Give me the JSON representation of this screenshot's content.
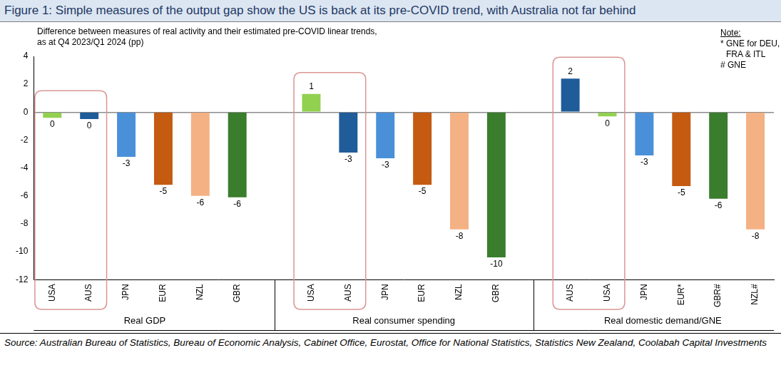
{
  "chart_data": {
    "type": "bar",
    "title": "Figure 1: Simple measures of the output gap show the US is back at its pre-COVID trend, with Australia not far behind",
    "subtitle": [
      "Difference between measures of real activity and their estimated pre-COVID linear trends,",
      "as at Q4 2023/Q1 2024 (pp)"
    ],
    "notes": [
      "Note:",
      "* GNE for DEU,",
      "FRA & ITL",
      "# GNE"
    ],
    "source": "Source: Australian Bureau of Statistics, Bureau of Economic Analysis, Cabinet Office, Eurostat, Office for National Statistics, Statistics New Zealand, Coolabah Capital Investments",
    "group_labels": [
      "Real GDP",
      "Real consumer spending",
      "Real domestic demand/GNE"
    ],
    "categories": [
      "USA",
      "AUS",
      "JPN",
      "EUR",
      "NZL",
      "GBR",
      null,
      "USA",
      "AUS",
      "JPN",
      "EUR",
      "NZL",
      "GBR",
      null,
      "AUS",
      "USA",
      "JPN",
      "EUR*",
      "GBR#",
      "NZL#"
    ],
    "values": [
      -0.4,
      -0.5,
      -3.2,
      -5.2,
      -6.0,
      -6.1,
      null,
      1.3,
      -2.9,
      -3.3,
      -5.2,
      -8.4,
      -10.4,
      null,
      2.4,
      -0.3,
      -3.1,
      -5.3,
      -6.2,
      -8.4
    ],
    "value_labels": [
      "0",
      "0",
      "-3",
      "-5",
      "-6",
      "-6",
      null,
      "1",
      "-3",
      "-3",
      "-5",
      "-8",
      "-10",
      null,
      "2",
      "0",
      "-3",
      "-5",
      "-6",
      "-8"
    ],
    "colors": [
      "#92d050",
      "#1f5c99",
      "#4a90d9",
      "#c55a11",
      "#f4b183",
      "#3a7d2c",
      null,
      "#92d050",
      "#1f5c99",
      "#4a90d9",
      "#c55a11",
      "#f4b183",
      "#3a7d2c",
      null,
      "#1f5c99",
      "#92d050",
      "#4a90d9",
      "#c55a11",
      "#3a7d2c",
      "#f4b183"
    ],
    "ylim": [
      -12,
      4
    ],
    "yticks": [
      4,
      2,
      0,
      -2,
      -4,
      -6,
      -8,
      -10,
      -12
    ],
    "grid": false,
    "data_labels": true
  }
}
